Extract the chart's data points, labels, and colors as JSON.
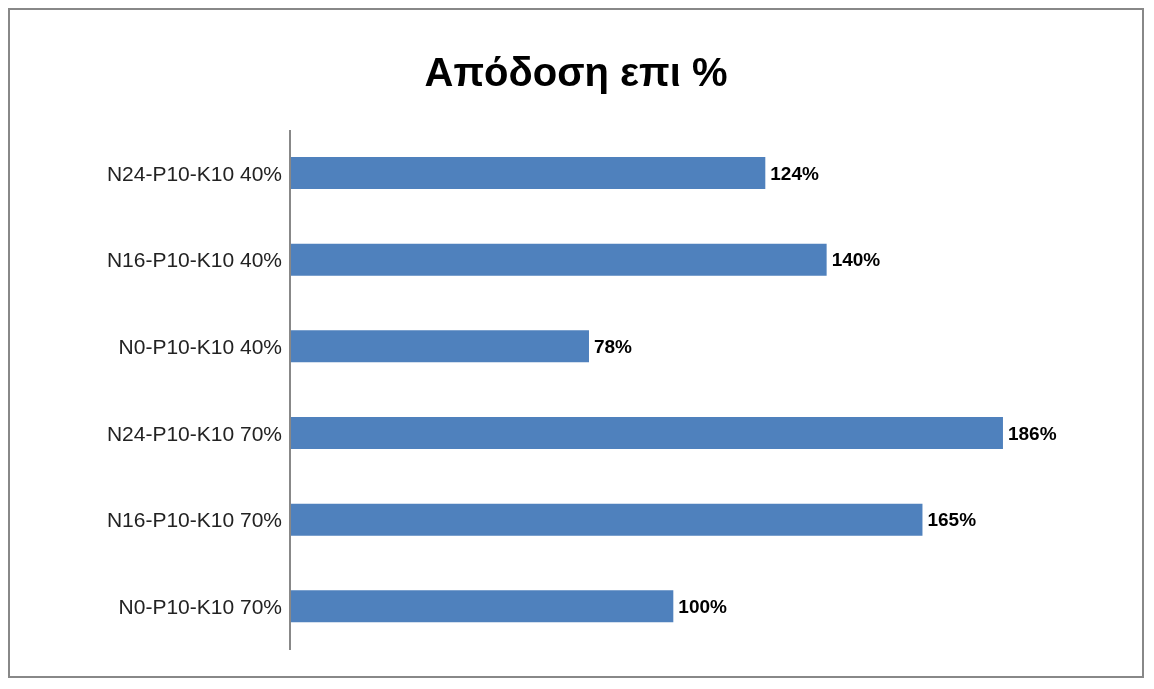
{
  "chart_data": {
    "type": "bar",
    "orientation": "horizontal",
    "title": "Απόδοση επι %",
    "categories": [
      "N24-P10-K10 40%",
      "N16-P10-K10  40%",
      "N0-P10-K10 40%",
      "N24-P10-K10  70%",
      "N16-P10-K10  70%",
      "N0-P10-K10 70%"
    ],
    "values": [
      124,
      140,
      78,
      186,
      165,
      100
    ],
    "value_labels": [
      "124%",
      "140%",
      "78%",
      "186%",
      "165%",
      "100%"
    ],
    "color": "#4f81bd",
    "grid": false,
    "legend": false
  }
}
